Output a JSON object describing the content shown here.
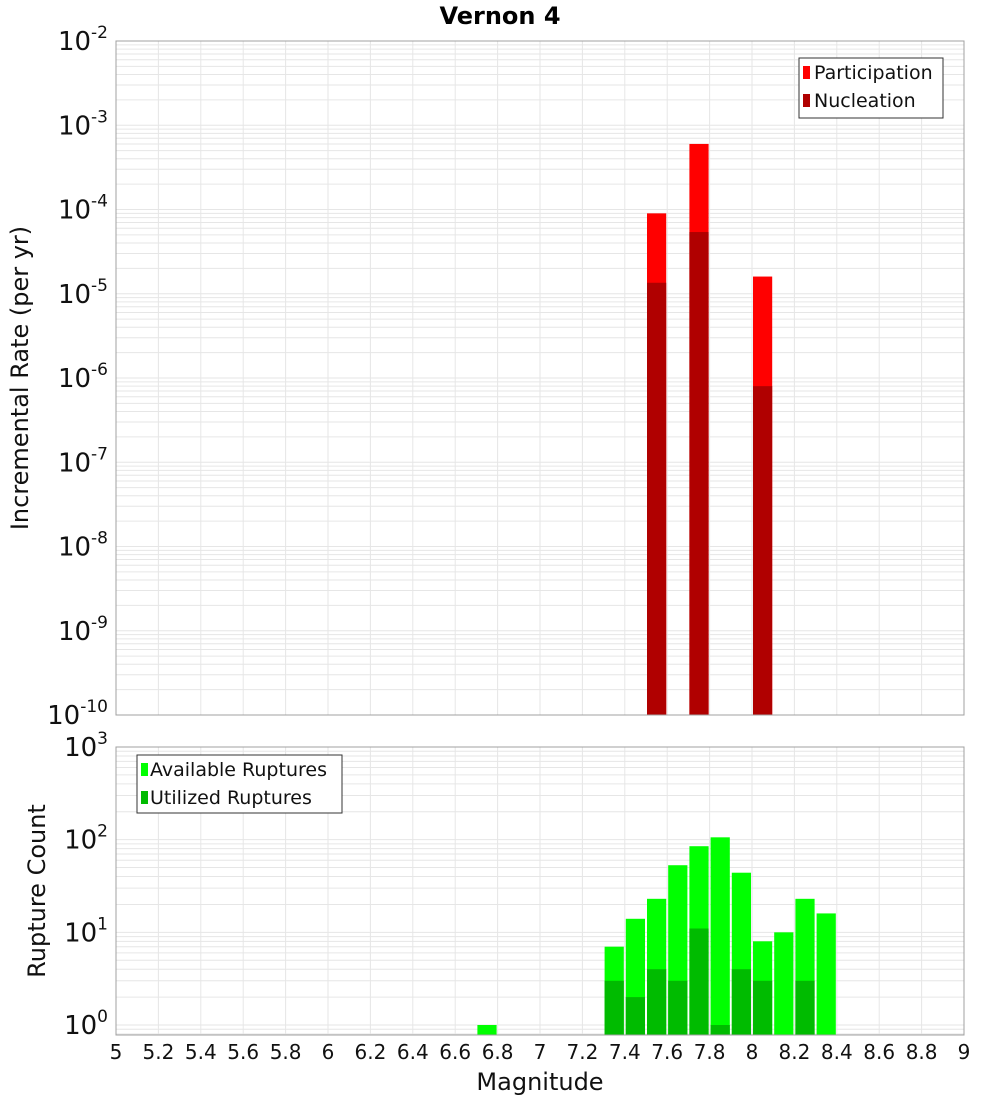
{
  "title": "Vernon 4",
  "colors": {
    "participation": "#ff0000",
    "nucleation": "#b00000",
    "available": "#00ff00",
    "utilized": "#00bb00",
    "grid": "#e6e6e6",
    "frame": "#a0a0a0"
  },
  "chart_data": [
    {
      "type": "bar",
      "panel": "top",
      "title": "Vernon 4",
      "xlabel": "Magnitude",
      "ylabel": "Incremental Rate (per yr)",
      "xlim": [
        5,
        9
      ],
      "ylim": [
        1e-10,
        0.01
      ],
      "yscale": "log",
      "grid": true,
      "legend_position": "top-right",
      "bin_width": 0.1,
      "series": [
        {
          "name": "Participation",
          "x": [
            7.55,
            7.75,
            8.05
          ],
          "values": [
            9e-05,
            0.0006,
            1.6e-05
          ]
        },
        {
          "name": "Nucleation",
          "x": [
            7.55,
            7.75,
            8.05
          ],
          "values": [
            1.35e-05,
            5.4e-05,
            8e-07
          ]
        }
      ],
      "y_ticks": [
        {
          "base": "10",
          "exp": "-2"
        },
        {
          "base": "10",
          "exp": "-3"
        },
        {
          "base": "10",
          "exp": "-4"
        },
        {
          "base": "10",
          "exp": "-5"
        },
        {
          "base": "10",
          "exp": "-6"
        },
        {
          "base": "10",
          "exp": "-7"
        },
        {
          "base": "10",
          "exp": "-8"
        },
        {
          "base": "10",
          "exp": "-9"
        },
        {
          "base": "10",
          "exp": "-10"
        }
      ]
    },
    {
      "type": "bar",
      "panel": "bottom",
      "xlabel": "Magnitude",
      "ylabel": "Rupture Count",
      "xlim": [
        5,
        9
      ],
      "ylim": [
        0.78,
        1000
      ],
      "yscale": "log",
      "grid": true,
      "legend_position": "top-left",
      "bin_width": 0.1,
      "series": [
        {
          "name": "Available Ruptures",
          "x": [
            6.75,
            7.35,
            7.45,
            7.55,
            7.65,
            7.75,
            7.85,
            7.95,
            8.05,
            8.15,
            8.25,
            8.35
          ],
          "values": [
            1,
            7,
            14,
            23,
            53,
            85,
            106,
            44,
            8,
            10,
            23,
            16
          ]
        },
        {
          "name": "Utilized Ruptures",
          "x": [
            7.35,
            7.45,
            7.55,
            7.65,
            7.75,
            7.85,
            7.95,
            8.05,
            8.25
          ],
          "values": [
            3,
            2,
            4,
            3,
            11,
            1,
            4,
            3,
            3
          ]
        }
      ],
      "y_ticks": [
        {
          "base": "10",
          "exp": "3"
        },
        {
          "base": "10",
          "exp": "2"
        },
        {
          "base": "10",
          "exp": "1"
        },
        {
          "base": "10",
          "exp": "0"
        }
      ]
    }
  ],
  "x_ticks": [
    "5",
    "5.2",
    "5.4",
    "5.6",
    "5.8",
    "6",
    "6.2",
    "6.4",
    "6.6",
    "6.8",
    "7",
    "7.2",
    "7.4",
    "7.6",
    "7.8",
    "8",
    "8.2",
    "8.4",
    "8.6",
    "8.8",
    "9"
  ]
}
